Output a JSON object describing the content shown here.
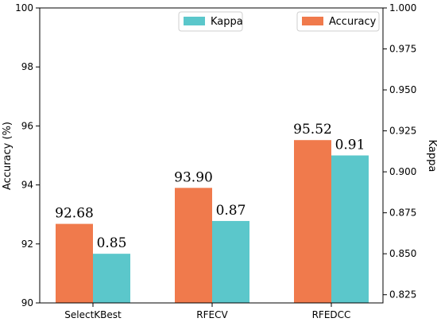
{
  "chart_data": {
    "type": "bar",
    "categories": [
      "SelectKBest",
      "RFECV",
      "RFEDCC"
    ],
    "series": [
      {
        "name": "Accuracy",
        "axis": "left",
        "color": "#f07a4c",
        "values": [
          92.68,
          93.9,
          95.52
        ],
        "labels": [
          "92.68",
          "93.90",
          "95.52"
        ]
      },
      {
        "name": "Kappa",
        "axis": "right",
        "color": "#5bc7cb",
        "values": [
          0.85,
          0.87,
          0.91
        ],
        "labels": [
          "0.85",
          "0.87",
          "0.91"
        ]
      }
    ],
    "ylabel": "Accuracy (%)",
    "y2label": "Kappa",
    "ylim": [
      90,
      100
    ],
    "y2lim": [
      0.82,
      1.0
    ],
    "yticks": [
      "90",
      "92",
      "94",
      "96",
      "98",
      "100"
    ],
    "y2ticks": [
      "0.825",
      "0.850",
      "0.875",
      "0.900",
      "0.925",
      "0.950",
      "0.975",
      "1.000"
    ],
    "legend": [
      {
        "label": "Kappa",
        "placement": "top-center"
      },
      {
        "label": "Accuracy",
        "placement": "top-right"
      }
    ],
    "grid": false
  }
}
